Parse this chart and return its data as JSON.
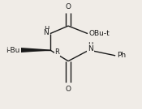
{
  "bg_color": "#f0ece7",
  "line_color": "#1a1a1a",
  "text_color": "#1a1a1a",
  "figsize": [
    1.75,
    1.35
  ],
  "dpi": 100,
  "xlim": [
    0.0,
    1.0
  ],
  "ylim": [
    0.05,
    1.0
  ]
}
